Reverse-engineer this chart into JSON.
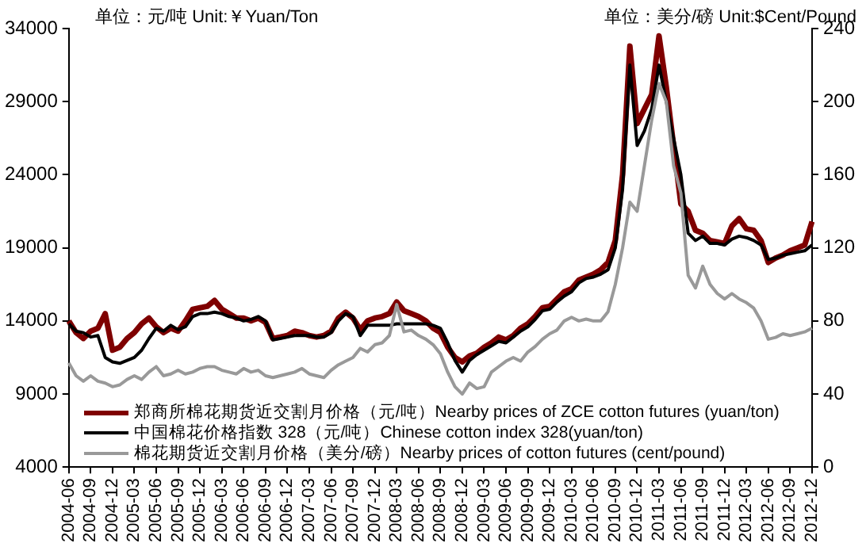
{
  "chart_data": {
    "type": "line",
    "ylabel": "单位：元/吨    Unit:￥Yuan/Ton",
    "y2label": "单位：美分/磅    Unit:$Cent/Pound",
    "categories": [
      "2004-06",
      null,
      null,
      "2004-09",
      null,
      null,
      "2004-12",
      null,
      null,
      "2005-03",
      null,
      null,
      "2005-06",
      null,
      null,
      "2005-09",
      null,
      null,
      "2005-12",
      null,
      null,
      "2006-03",
      null,
      null,
      "2006-06",
      null,
      null,
      "2006-09",
      null,
      null,
      "2006-12",
      null,
      null,
      "2007-03",
      null,
      null,
      "2007-06",
      null,
      null,
      "2007-09",
      null,
      null,
      "2007-12",
      null,
      null,
      "2008-03",
      null,
      null,
      "2008-06",
      null,
      null,
      "2008-09",
      null,
      null,
      "2008-12",
      null,
      null,
      "2009-03",
      null,
      null,
      "2009-06",
      null,
      null,
      "2009-09",
      null,
      null,
      "2009-12",
      null,
      null,
      "2010-03",
      null,
      null,
      "2010-06",
      null,
      null,
      "2010-09",
      null,
      null,
      "2010-12",
      null,
      null,
      "2011-03",
      null,
      null,
      "2011-06",
      null,
      null,
      "2011-09",
      null,
      null,
      "2011-12",
      null,
      null,
      "2012-03",
      null,
      null,
      "2012-06",
      null,
      null,
      "2012-09",
      null,
      null,
      "2012-12"
    ],
    "series": [
      {
        "name": "郑商所棉花期货近交割月价格（元/吨）Nearby prices of ZCE cotton futures (yuan/ton)",
        "color": "#7f0000",
        "values": [
          14000,
          13200,
          12800,
          13300,
          13500,
          14500,
          12000,
          12200,
          12800,
          13200,
          13800,
          14200,
          13600,
          13200,
          13500,
          13300,
          14000,
          14800,
          14900,
          15000,
          15400,
          14800,
          14500,
          14200,
          14200,
          14000,
          14200,
          13900,
          12800,
          12900,
          13000,
          13300,
          13200,
          13000,
          12900,
          13000,
          13300,
          14200,
          14600,
          14200,
          13400,
          14000,
          14200,
          14300,
          14500,
          15300,
          14700,
          14500,
          14300,
          14000,
          13500,
          13200,
          12200,
          11500,
          11200,
          11600,
          11800,
          12200,
          12500,
          12900,
          12700,
          13000,
          13500,
          13800,
          14300,
          14900,
          15000,
          15500,
          16000,
          16200,
          16800,
          17000,
          17200,
          17500,
          18000,
          19500,
          24000,
          32800,
          27500,
          28500,
          29500,
          33500,
          30000,
          26000,
          22000,
          21500,
          20200,
          20000,
          19500,
          19400,
          19300,
          20500,
          21000,
          20300,
          20200,
          19500,
          18000,
          18300,
          18500,
          18800,
          19000,
          19200,
          20800
        ]
      },
      {
        "name": "中国棉花价格指数 328（元/吨）Chinese cotton index 328(yuan/ton)",
        "color": "#000000",
        "values": [
          13800,
          13300,
          13200,
          12900,
          13000,
          11500,
          11200,
          11100,
          11300,
          11500,
          12000,
          12800,
          13500,
          13300,
          13700,
          13400,
          13600,
          14300,
          14500,
          14500,
          14600,
          14500,
          14300,
          14200,
          14000,
          14100,
          14300,
          14000,
          12700,
          12800,
          12900,
          13000,
          13000,
          13000,
          12900,
          12900,
          13200,
          14000,
          14500,
          14300,
          13000,
          13700,
          13700,
          13700,
          13700,
          13800,
          13800,
          13800,
          13800,
          13800,
          13700,
          13500,
          12500,
          11300,
          10500,
          11300,
          11700,
          12000,
          12300,
          12600,
          12500,
          12900,
          13300,
          13600,
          14100,
          14700,
          14800,
          15300,
          15700,
          16000,
          16600,
          16900,
          17000,
          17200,
          17500,
          19000,
          23000,
          31500,
          26000,
          27000,
          28500,
          31500,
          29000,
          26500,
          24000,
          20000,
          19500,
          19800,
          19300,
          19300,
          19200,
          19600,
          19800,
          19700,
          19500,
          19200,
          18200,
          18300,
          18500,
          18600,
          18700,
          18800,
          19200
        ]
      },
      {
        "name": "棉花期货近交割月价格（美分/磅）Nearby prices of cotton futures (cent/pound)",
        "color": "#999999",
        "axis": "y2",
        "values": [
          57,
          50,
          47,
          50,
          47,
          46,
          44,
          45,
          48,
          50,
          48,
          52,
          55,
          50,
          51,
          53,
          51,
          52,
          54,
          55,
          55,
          53,
          52,
          51,
          54,
          52,
          53,
          50,
          49,
          50,
          51,
          52,
          54,
          51,
          50,
          49,
          53,
          56,
          58,
          60,
          65,
          63,
          67,
          68,
          72,
          89,
          74,
          75,
          72,
          70,
          67,
          62,
          52,
          44,
          40,
          46,
          43,
          44,
          52,
          55,
          58,
          60,
          58,
          63,
          66,
          70,
          73,
          75,
          80,
          82,
          80,
          81,
          80,
          80,
          85,
          100,
          120,
          145,
          140,
          165,
          190,
          210,
          200,
          165,
          150,
          105,
          98,
          110,
          100,
          95,
          92,
          95,
          92,
          90,
          87,
          80,
          70,
          71,
          73,
          72,
          73,
          74,
          76
        ]
      }
    ],
    "ylim": [
      4000,
      34000
    ],
    "yticks": [
      4000,
      9000,
      14000,
      19000,
      24000,
      29000,
      34000
    ],
    "y2lim": [
      0,
      240
    ],
    "y2ticks": [
      0,
      40,
      80,
      120,
      160,
      200,
      240
    ],
    "grid": false,
    "legend": "bottom left",
    "marker": "none",
    "line_style": "solid"
  }
}
